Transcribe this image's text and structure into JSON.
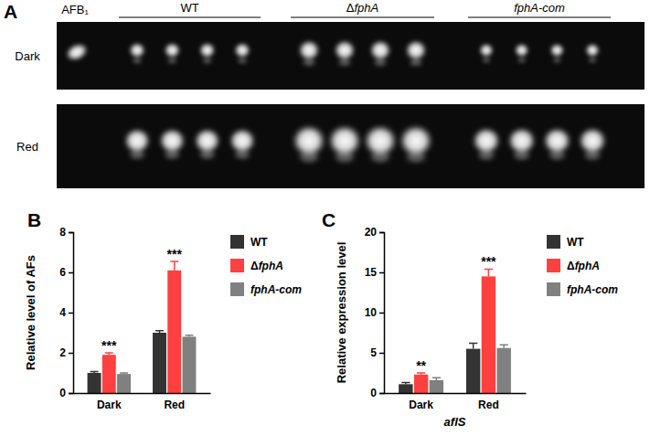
{
  "chart_data": [
    {
      "type": "image",
      "panel": "A",
      "standard": "AFB₁",
      "groups": [
        "WT",
        "ΔfphA",
        "fphA-com"
      ],
      "rows": [
        "Dark",
        "Red"
      ]
    },
    {
      "type": "bar",
      "panel": "B",
      "ylabel": "Relative level of AFs",
      "categories": [
        "Dark",
        "Red"
      ],
      "series": [
        {
          "name": "WT",
          "color": "#333333",
          "values": [
            1.0,
            3.0
          ],
          "errors": [
            0.07,
            0.1
          ]
        },
        {
          "name": "ΔfphA",
          "color": "#ff4040",
          "values": [
            1.9,
            6.1
          ],
          "errors": [
            0.1,
            0.45
          ],
          "significance": [
            "***",
            "***"
          ]
        },
        {
          "name": "fphA-com",
          "color": "#808080",
          "values": [
            0.95,
            2.8
          ],
          "errors": [
            0.05,
            0.08
          ]
        }
      ],
      "ylim": [
        0,
        8
      ],
      "yticks": [
        0,
        2,
        4,
        6,
        8
      ],
      "legend": "right"
    },
    {
      "type": "bar",
      "panel": "C",
      "ylabel": "Relative expression level",
      "xlabel": "aflS",
      "categories": [
        "Dark",
        "Red"
      ],
      "series": [
        {
          "name": "WT",
          "color": "#333333",
          "values": [
            1.1,
            5.5
          ],
          "errors": [
            0.2,
            0.7
          ]
        },
        {
          "name": "ΔfphA",
          "color": "#ff4040",
          "values": [
            2.3,
            14.5
          ],
          "errors": [
            0.2,
            0.9
          ],
          "significance": [
            "**",
            "***"
          ]
        },
        {
          "name": "fphA-com",
          "color": "#808080",
          "values": [
            1.6,
            5.6
          ],
          "errors": [
            0.3,
            0.4
          ]
        }
      ],
      "ylim": [
        0,
        20
      ],
      "yticks": [
        0,
        5,
        10,
        15,
        20
      ],
      "legend": "right"
    }
  ]
}
